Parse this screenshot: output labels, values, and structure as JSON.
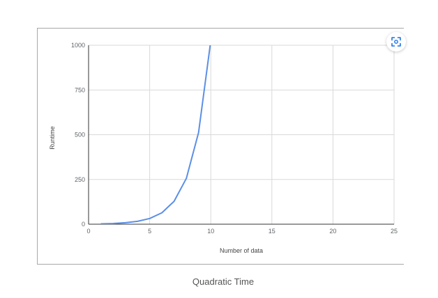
{
  "caption": "Quadratic Time",
  "icons": {
    "expand": "focus-expand-icon"
  },
  "colors": {
    "line": "#5b8fe6",
    "grid": "#d9d9d9",
    "axis": "#333333",
    "button_icon": "#1a73e8"
  },
  "chart_data": {
    "type": "line",
    "title": "",
    "xlabel": "Number of data",
    "ylabel": "Runtime",
    "xlim": [
      0,
      25
    ],
    "ylim": [
      0,
      1000
    ],
    "x_ticks": [
      0,
      5,
      10,
      15,
      20,
      25
    ],
    "y_ticks": [
      0,
      250,
      500,
      750,
      1000
    ],
    "grid": true,
    "legend": "none",
    "series": [
      {
        "x": [
          1,
          2,
          3,
          4,
          5,
          6,
          7,
          8,
          9,
          10
        ],
        "values": [
          2,
          4,
          8,
          16,
          32,
          64,
          128,
          256,
          512,
          1024
        ]
      }
    ]
  }
}
